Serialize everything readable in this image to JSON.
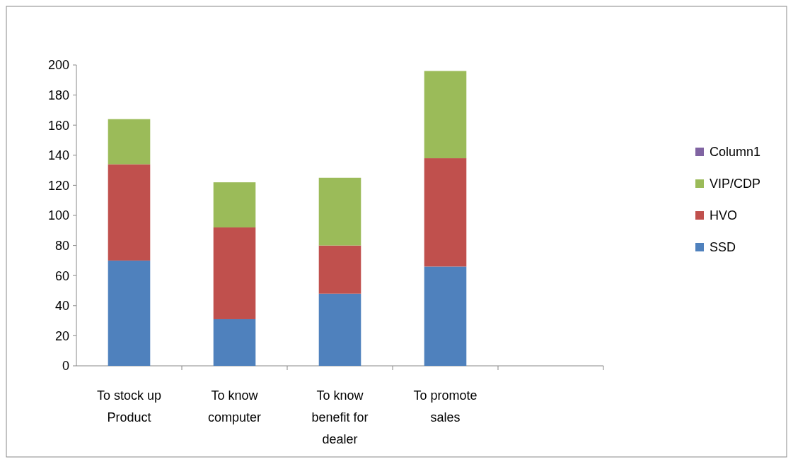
{
  "chart_data": {
    "type": "bar",
    "stacked": true,
    "categories": [
      "To stock up Product",
      "To know computer",
      "To know benefit for dealer",
      "To promote sales",
      null
    ],
    "series": [
      {
        "name": "SSD",
        "color": "#4f81bd",
        "values": [
          70,
          31,
          48,
          66,
          null
        ]
      },
      {
        "name": "HVO",
        "color": "#c0504d",
        "values": [
          64,
          61,
          32,
          72,
          null
        ]
      },
      {
        "name": "VIP/CDP",
        "color": "#9bbb59",
        "values": [
          30,
          30,
          45,
          58,
          null
        ]
      },
      {
        "name": "Column1",
        "color": "#8064a2",
        "values": [
          null,
          null,
          null,
          null,
          null
        ]
      }
    ],
    "ylim": [
      0,
      200
    ],
    "yticks": [
      0,
      20,
      40,
      60,
      80,
      100,
      120,
      140,
      160,
      180,
      200
    ],
    "legend": "right",
    "grid": false
  }
}
